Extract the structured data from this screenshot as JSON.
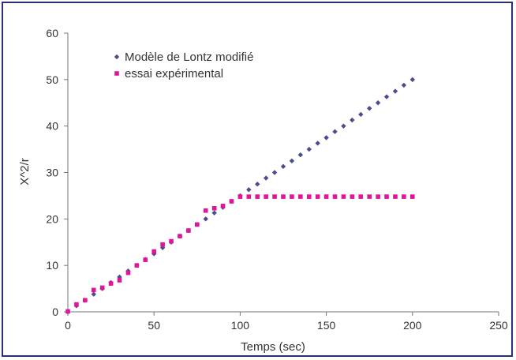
{
  "chart_data": {
    "type": "scatter",
    "xlabel": "Temps (sec)",
    "ylabel": "X^2/r",
    "xlim": [
      0,
      250
    ],
    "ylim": [
      0,
      60
    ],
    "xticks": [
      0,
      50,
      100,
      150,
      200,
      250
    ],
    "yticks": [
      0,
      10,
      20,
      30,
      40,
      50,
      60
    ],
    "grid": false,
    "legend_position": "top-left",
    "series": [
      {
        "name": "Modèle de Lontz modifié",
        "marker": "diamond",
        "color": "#4b4d8a",
        "x": [
          0,
          5,
          10,
          15,
          20,
          25,
          30,
          35,
          40,
          45,
          50,
          55,
          60,
          65,
          70,
          75,
          80,
          85,
          90,
          95,
          100,
          105,
          110,
          115,
          120,
          125,
          130,
          135,
          140,
          145,
          150,
          155,
          160,
          165,
          170,
          175,
          180,
          185,
          190,
          195,
          200
        ],
        "y": [
          0,
          1.3,
          2.5,
          3.8,
          5.0,
          6.3,
          7.5,
          8.8,
          10.0,
          11.3,
          12.5,
          13.8,
          15.0,
          16.3,
          17.5,
          18.8,
          20.0,
          21.3,
          22.5,
          23.8,
          25.0,
          26.3,
          27.5,
          28.8,
          30.0,
          31.3,
          32.5,
          33.8,
          35.0,
          36.3,
          37.5,
          38.8,
          40.0,
          41.3,
          42.5,
          43.8,
          45.0,
          46.3,
          47.5,
          48.8,
          50.0
        ]
      },
      {
        "name": "essai expérimental",
        "marker": "square",
        "color": "#e0159a",
        "x": [
          0,
          5,
          10,
          15,
          20,
          25,
          30,
          35,
          40,
          45,
          50,
          55,
          60,
          65,
          70,
          75,
          80,
          85,
          90,
          95,
          100,
          105,
          110,
          115,
          120,
          125,
          130,
          135,
          140,
          145,
          150,
          155,
          160,
          165,
          170,
          175,
          180,
          185,
          190,
          195,
          200
        ],
        "y": [
          0.1,
          1.6,
          2.5,
          4.7,
          5.2,
          6.1,
          6.8,
          8.4,
          10.0,
          11.2,
          13.0,
          14.5,
          15.2,
          16.3,
          17.5,
          18.8,
          21.8,
          22.3,
          22.8,
          23.8,
          24.8,
          24.8,
          24.8,
          24.8,
          24.8,
          24.8,
          24.8,
          24.8,
          24.8,
          24.8,
          24.8,
          24.8,
          24.8,
          24.8,
          24.8,
          24.8,
          24.8,
          24.8,
          24.8,
          24.8,
          24.8
        ]
      }
    ]
  }
}
